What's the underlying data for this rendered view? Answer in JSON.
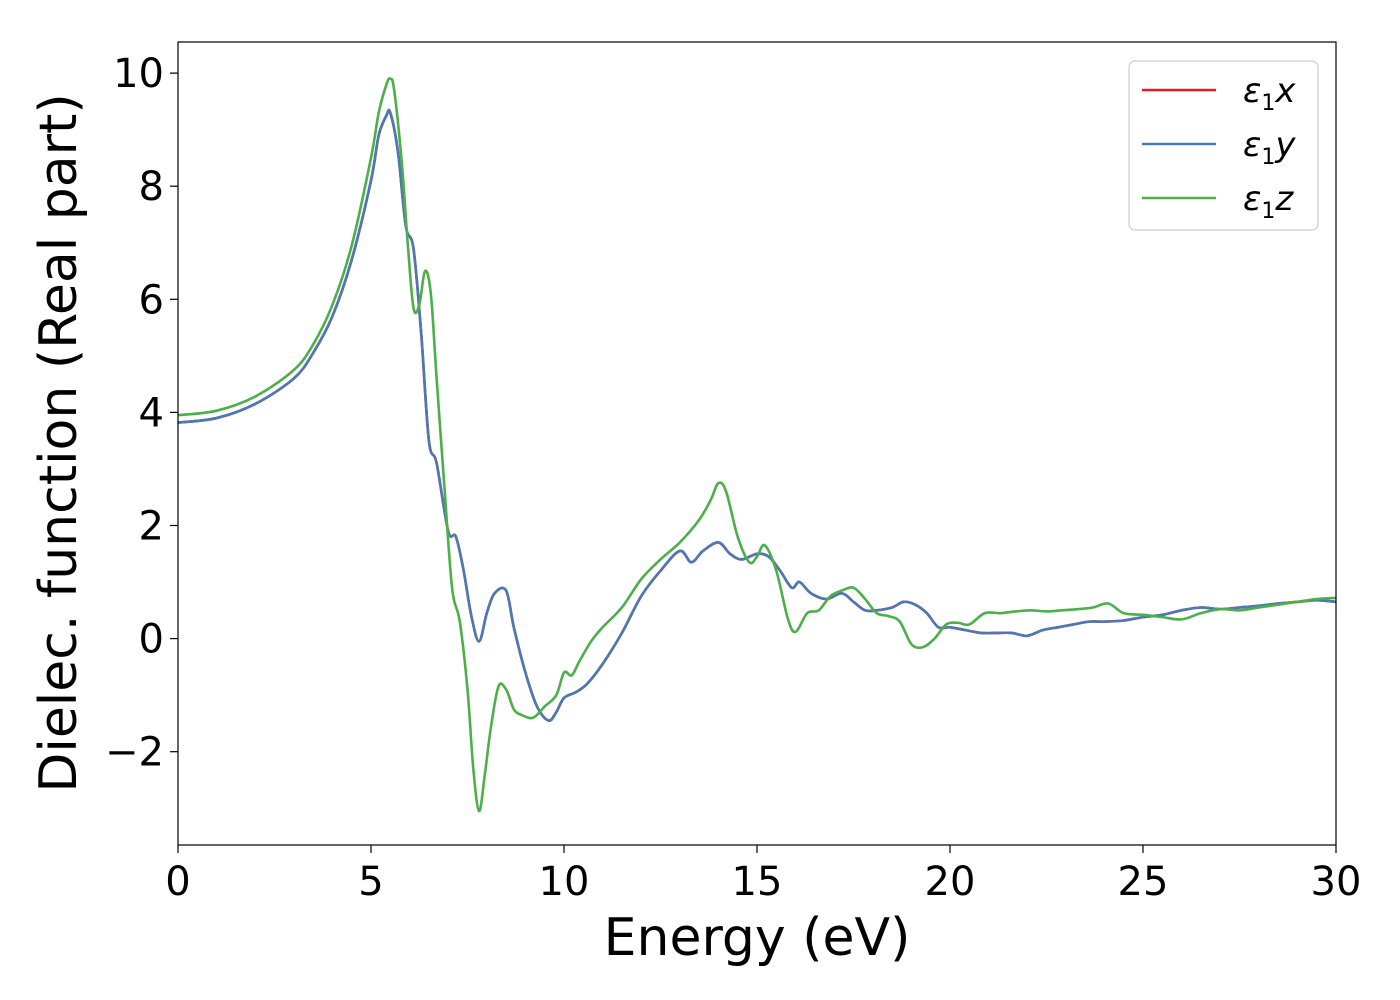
{
  "chart_data": {
    "type": "line",
    "title": "",
    "xlabel": "Energy (eV)",
    "ylabel": "Dielec. function (Real part)",
    "xlim": [
      0,
      30
    ],
    "ylim": [
      -3.65,
      10.55
    ],
    "xticks": [
      0,
      5,
      10,
      15,
      20,
      25,
      30
    ],
    "xtick_labels": [
      "0",
      "5",
      "10",
      "15",
      "20",
      "25",
      "30"
    ],
    "yticks": [
      -2,
      0,
      2,
      4,
      6,
      8,
      10
    ],
    "ytick_labels": [
      "−2",
      "0",
      "2",
      "4",
      "6",
      "8",
      "10"
    ],
    "grid": false,
    "legend_position": "top-right",
    "series": [
      {
        "name": "ε₁x",
        "legend": {
          "base": "ε",
          "sub": "1",
          "var": "x"
        },
        "color": "#e41a1c",
        "x": [
          0,
          1,
          2,
          3,
          3.5,
          4,
          4.5,
          5,
          5.2,
          5.4,
          5.5,
          5.7,
          5.9,
          6.1,
          6.3,
          6.5,
          6.7,
          7.0,
          7.2,
          7.4,
          7.6,
          7.8,
          8.0,
          8.2,
          8.5,
          8.7,
          9.0,
          9.3,
          9.6,
          9.8,
          10.0,
          10.3,
          10.6,
          11.0,
          11.5,
          12.0,
          12.5,
          13.0,
          13.3,
          13.6,
          14.0,
          14.3,
          14.6,
          15.0,
          15.3,
          15.6,
          15.9,
          16.1,
          16.4,
          16.8,
          17.2,
          17.5,
          17.8,
          18.1,
          18.5,
          18.8,
          19.1,
          19.4,
          19.7,
          20.0,
          20.4,
          20.8,
          21.2,
          21.6,
          22.0,
          22.4,
          22.8,
          23.2,
          23.6,
          24.0,
          24.5,
          25.0,
          25.5,
          26.0,
          26.5,
          27.0,
          27.5,
          28.0,
          28.5,
          29.0,
          29.5,
          30.0
        ],
        "y": [
          3.82,
          3.9,
          4.15,
          4.6,
          5.05,
          5.7,
          6.7,
          8.1,
          8.9,
          9.25,
          9.3,
          8.6,
          7.3,
          6.9,
          5.4,
          3.5,
          3.1,
          1.9,
          1.8,
          1.2,
          0.4,
          -0.05,
          0.45,
          0.8,
          0.85,
          0.2,
          -0.6,
          -1.2,
          -1.45,
          -1.3,
          -1.05,
          -0.95,
          -0.8,
          -0.45,
          0.1,
          0.75,
          1.2,
          1.55,
          1.35,
          1.55,
          1.7,
          1.5,
          1.4,
          1.5,
          1.45,
          1.2,
          0.9,
          1.0,
          0.8,
          0.7,
          0.8,
          0.65,
          0.5,
          0.5,
          0.55,
          0.65,
          0.6,
          0.45,
          0.2,
          0.2,
          0.15,
          0.1,
          0.1,
          0.1,
          0.05,
          0.15,
          0.2,
          0.25,
          0.3,
          0.3,
          0.32,
          0.38,
          0.42,
          0.5,
          0.55,
          0.52,
          0.55,
          0.58,
          0.62,
          0.65,
          0.68,
          0.65
        ]
      },
      {
        "name": "ε₁y",
        "legend": {
          "base": "ε",
          "sub": "1",
          "var": "y"
        },
        "color": "#4a79b5",
        "x": [
          0,
          1,
          2,
          3,
          3.5,
          4,
          4.5,
          5,
          5.2,
          5.4,
          5.5,
          5.7,
          5.9,
          6.1,
          6.3,
          6.5,
          6.7,
          7.0,
          7.2,
          7.4,
          7.6,
          7.8,
          8.0,
          8.2,
          8.5,
          8.7,
          9.0,
          9.3,
          9.6,
          9.8,
          10.0,
          10.3,
          10.6,
          11.0,
          11.5,
          12.0,
          12.5,
          13.0,
          13.3,
          13.6,
          14.0,
          14.3,
          14.6,
          15.0,
          15.3,
          15.6,
          15.9,
          16.1,
          16.4,
          16.8,
          17.2,
          17.5,
          17.8,
          18.1,
          18.5,
          18.8,
          19.1,
          19.4,
          19.7,
          20.0,
          20.4,
          20.8,
          21.2,
          21.6,
          22.0,
          22.4,
          22.8,
          23.2,
          23.6,
          24.0,
          24.5,
          25.0,
          25.5,
          26.0,
          26.5,
          27.0,
          27.5,
          28.0,
          28.5,
          29.0,
          29.5,
          30.0
        ],
        "y": [
          3.82,
          3.9,
          4.15,
          4.6,
          5.05,
          5.7,
          6.7,
          8.1,
          8.9,
          9.25,
          9.3,
          8.6,
          7.3,
          6.9,
          5.4,
          3.5,
          3.1,
          1.9,
          1.8,
          1.2,
          0.4,
          -0.05,
          0.45,
          0.8,
          0.85,
          0.2,
          -0.6,
          -1.2,
          -1.45,
          -1.3,
          -1.05,
          -0.95,
          -0.8,
          -0.45,
          0.1,
          0.75,
          1.2,
          1.55,
          1.35,
          1.55,
          1.7,
          1.5,
          1.4,
          1.5,
          1.45,
          1.2,
          0.9,
          1.0,
          0.8,
          0.7,
          0.8,
          0.65,
          0.5,
          0.5,
          0.55,
          0.65,
          0.6,
          0.45,
          0.2,
          0.2,
          0.15,
          0.1,
          0.1,
          0.1,
          0.05,
          0.15,
          0.2,
          0.25,
          0.3,
          0.3,
          0.32,
          0.38,
          0.42,
          0.5,
          0.55,
          0.52,
          0.55,
          0.58,
          0.62,
          0.65,
          0.68,
          0.65
        ]
      },
      {
        "name": "ε₁z",
        "legend": {
          "base": "ε",
          "sub": "1",
          "var": "z"
        },
        "color": "#4daf4a",
        "x": [
          0,
          1,
          2,
          3,
          3.5,
          4,
          4.5,
          5,
          5.2,
          5.4,
          5.5,
          5.6,
          5.8,
          5.95,
          6.1,
          6.25,
          6.4,
          6.55,
          6.7,
          6.9,
          7.1,
          7.3,
          7.5,
          7.65,
          7.8,
          7.95,
          8.1,
          8.3,
          8.5,
          8.7,
          8.9,
          9.2,
          9.5,
          9.8,
          10.0,
          10.2,
          10.4,
          10.7,
          11.0,
          11.5,
          12.0,
          12.5,
          13.0,
          13.5,
          13.8,
          14.0,
          14.2,
          14.5,
          14.8,
          15.0,
          15.2,
          15.5,
          15.8,
          16.0,
          16.3,
          16.6,
          16.9,
          17.2,
          17.5,
          17.8,
          18.1,
          18.4,
          18.7,
          19.0,
          19.3,
          19.6,
          19.9,
          20.2,
          20.5,
          20.9,
          21.3,
          21.7,
          22.1,
          22.5,
          22.9,
          23.3,
          23.7,
          24.1,
          24.5,
          25.0,
          25.5,
          26.0,
          26.5,
          27.0,
          27.5,
          28.0,
          28.5,
          29.0,
          29.5,
          30.0
        ],
        "y": [
          3.95,
          4.03,
          4.28,
          4.75,
          5.2,
          5.9,
          6.95,
          8.5,
          9.3,
          9.8,
          9.9,
          9.7,
          8.4,
          7.0,
          5.85,
          5.9,
          6.5,
          6.1,
          4.6,
          2.7,
          0.9,
          0.3,
          -0.9,
          -2.3,
          -3.05,
          -2.4,
          -1.6,
          -0.85,
          -0.9,
          -1.25,
          -1.35,
          -1.4,
          -1.2,
          -1.0,
          -0.6,
          -0.65,
          -0.4,
          -0.05,
          0.2,
          0.55,
          1.05,
          1.4,
          1.7,
          2.1,
          2.45,
          2.75,
          2.6,
          1.8,
          1.35,
          1.45,
          1.65,
          1.2,
          0.35,
          0.12,
          0.45,
          0.5,
          0.75,
          0.85,
          0.9,
          0.7,
          0.45,
          0.4,
          0.3,
          -0.1,
          -0.15,
          0.0,
          0.25,
          0.28,
          0.25,
          0.45,
          0.45,
          0.48,
          0.5,
          0.48,
          0.5,
          0.52,
          0.55,
          0.62,
          0.45,
          0.42,
          0.38,
          0.34,
          0.45,
          0.52,
          0.5,
          0.55,
          0.6,
          0.65,
          0.7,
          0.72
        ]
      }
    ]
  }
}
